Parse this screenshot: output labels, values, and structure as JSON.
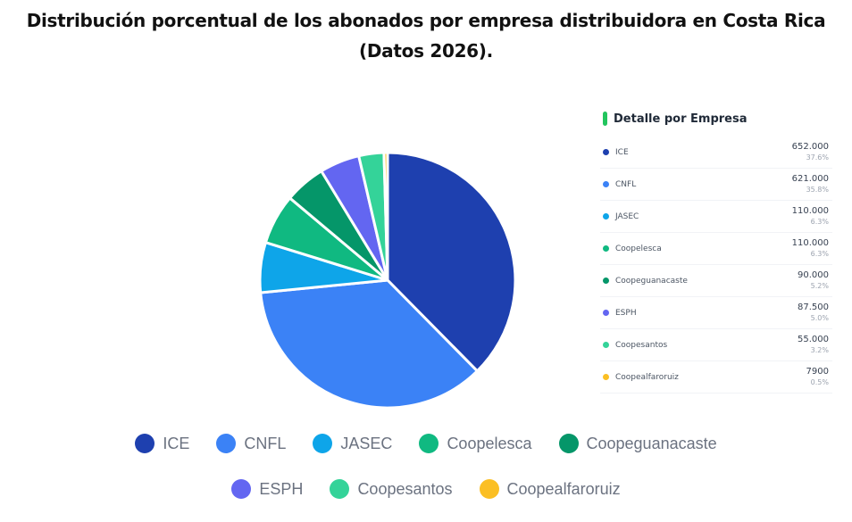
{
  "title": {
    "line1": "Distribución porcentual de los abonados por empresa distribuidora en Costa Rica",
    "line2": "(Datos 2026)."
  },
  "detail_panel": {
    "title": "Detalle por Empresa",
    "accent_color": "#22c55e",
    "rows": [
      {
        "name": "ICE",
        "value": "652.000",
        "pct": "37.6%",
        "color": "#1e40af"
      },
      {
        "name": "CNFL",
        "value": "621.000",
        "pct": "35.8%",
        "color": "#3b82f6"
      },
      {
        "name": "JASEC",
        "value": "110.000",
        "pct": "6.3%",
        "color": "#0ea5e9"
      },
      {
        "name": "Coopelesca",
        "value": "110.000",
        "pct": "6.3%",
        "color": "#10b981"
      },
      {
        "name": "Coopeguanacaste",
        "value": "90.000",
        "pct": "5.2%",
        "color": "#059669"
      },
      {
        "name": "ESPH",
        "value": "87.500",
        "pct": "5.0%",
        "color": "#6366f1"
      },
      {
        "name": "Coopesantos",
        "value": "55.000",
        "pct": "3.2%",
        "color": "#34d399"
      },
      {
        "name": "Coopealfaroruiz",
        "value": "7900",
        "pct": "0.5%",
        "color": "#fbbf24"
      }
    ]
  },
  "legend": {
    "row1": [
      {
        "label": "ICE",
        "color": "#1e40af"
      },
      {
        "label": "CNFL",
        "color": "#3b82f6"
      },
      {
        "label": "JASEC",
        "color": "#0ea5e9"
      },
      {
        "label": "Coopelesca",
        "color": "#10b981"
      },
      {
        "label": "Coopeguanacaste",
        "color": "#059669"
      }
    ],
    "row2": [
      {
        "label": "ESPH",
        "color": "#6366f1"
      },
      {
        "label": "Coopesantos",
        "color": "#34d399"
      },
      {
        "label": "Coopealfaroruiz",
        "color": "#fbbf24"
      }
    ]
  },
  "chart_data": {
    "type": "pie",
    "title": "Distribución porcentual de los abonados por empresa distribuidora en Costa Rica (Datos 2026).",
    "categories": [
      "ICE",
      "CNFL",
      "JASEC",
      "Coopelesca",
      "Coopeguanacaste",
      "ESPH",
      "Coopesantos",
      "Coopealfaroruiz"
    ],
    "values": [
      652000,
      621000,
      110000,
      110000,
      90000,
      87500,
      55000,
      7900
    ],
    "percentages": [
      37.6,
      35.8,
      6.3,
      6.3,
      5.2,
      5.0,
      3.2,
      0.5
    ],
    "colors": [
      "#1e40af",
      "#3b82f6",
      "#0ea5e9",
      "#10b981",
      "#059669",
      "#6366f1",
      "#34d399",
      "#fbbf24"
    ],
    "start_angle": "12 o'clock",
    "direction": "clockwise",
    "legend_position": "bottom",
    "xlabel": "",
    "ylabel": ""
  }
}
